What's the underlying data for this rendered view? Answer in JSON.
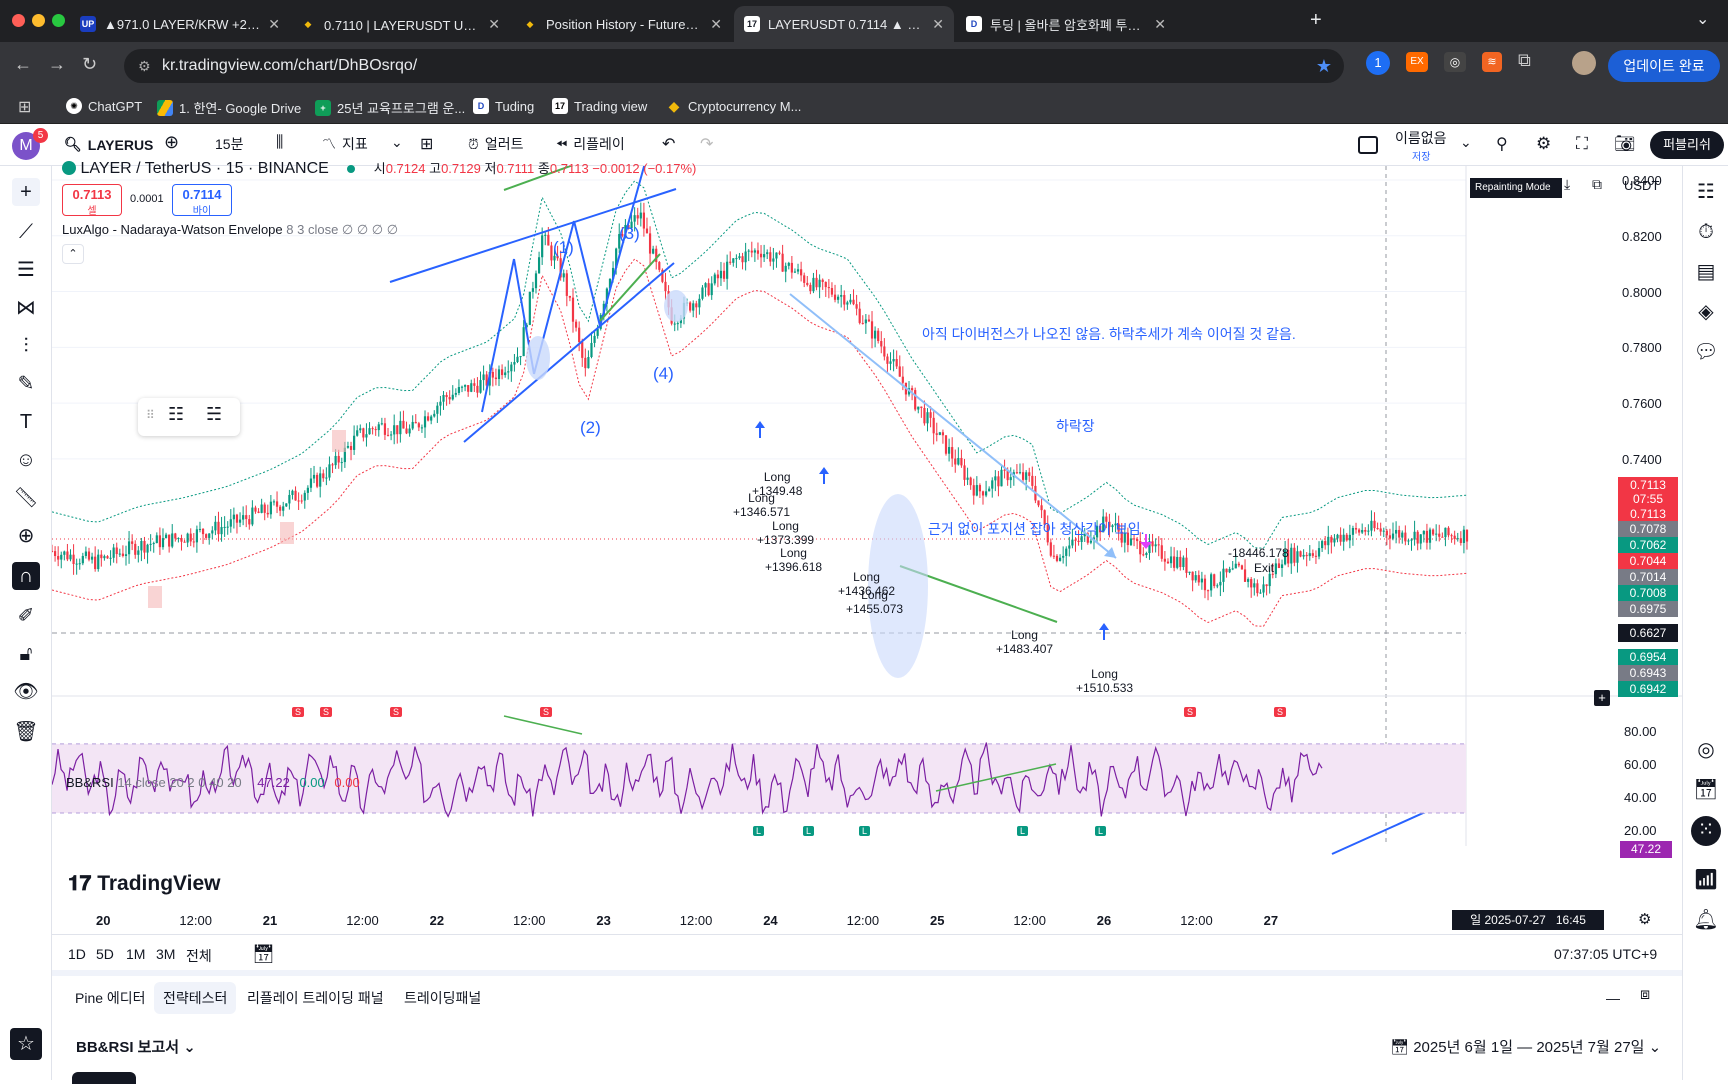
{
  "browser": {
    "tabs": [
      {
        "title": "▲971.0 LAYER/KRW +2.20%",
        "fav": "UP",
        "color": "#1a3dbf"
      },
      {
        "title": "0.7110 | LAYERUSDT USDⓈ-M",
        "fav": "◆",
        "color": "#f0b90b"
      },
      {
        "title": "Position History - Futures Ord",
        "fav": "◆",
        "color": "#f0b90b"
      },
      {
        "title": "LAYERUSDT 0.7114 ▲ +1.92%",
        "fav": "17",
        "color": "#131722"
      },
      {
        "title": "투딩 | 올바른 암호화폐 투자의 모든",
        "fav": "D",
        "color": "#fff"
      }
    ],
    "url": "kr.tradingview.com/chart/DhBOsrqo/",
    "update_label": "업데이트 완료",
    "bookmarks": [
      "ChatGPT",
      "1. 한연- Google Drive",
      "25년 교육프로그램 운...",
      "Tuding",
      "Trading view",
      "Cryptocurrency M..."
    ]
  },
  "toolbar": {
    "avatar": "M",
    "badge": "5",
    "symbol": "LAYERUS",
    "interval": "15분",
    "indicators": "지표",
    "alert": "얼러트",
    "replay": "리플레이",
    "layout_name": "이름없음",
    "layout_sub": "저장",
    "publish": "퍼블리쉬"
  },
  "legend": {
    "title": "LAYER / TetherUS · 15 · BINANCE",
    "o_label": "시",
    "o": "0.7124",
    "h_label": "고",
    "h": "0.7129",
    "l_label": "저",
    "l": "0.7111",
    "c_label": "종",
    "c": "0.7113",
    "chg": "−0.0012 (−0.17%)",
    "sell_price": "0.7113",
    "sell_label": "셀",
    "spread": "0.0001",
    "buy_price": "0.7114",
    "buy_label": "바이",
    "indicator": "LuxAlgo - Nadaraya-Watson Envelope",
    "indicator_params": "8 3 close ∅ ∅ ∅ ∅",
    "repaint": "Repainting Mode",
    "currency": "USDT"
  },
  "annotations": {
    "note1": "아직 다이버전스가 나오진 않음. 하락추세가 계속 이어질 것 같음.",
    "note2": "하락장",
    "note3": "근거 없이 포지션 잡아 청산각이 보임.",
    "wave1": "(1)",
    "wave2": "(2)",
    "wave3": "(3)",
    "wave4": "(4)",
    "exit_pnl": "-18446.178",
    "exit_label": "Exit",
    "trades": [
      {
        "t": "Long",
        "v": "+1349.48"
      },
      {
        "t": "Long",
        "v": "+1346.571"
      },
      {
        "t": "Long",
        "v": "+1373.399"
      },
      {
        "t": "Long",
        "v": "+1396.618"
      },
      {
        "t": "Long",
        "v": "+1436.462"
      },
      {
        "t": "Long",
        "v": "+1455.073"
      },
      {
        "t": "Long",
        "v": "+1483.407"
      },
      {
        "t": "Long",
        "v": "+1510.533"
      }
    ]
  },
  "price_axis": {
    "ticks": [
      "0.8400",
      "0.8200",
      "0.8000",
      "0.7800",
      "0.7600",
      "0.7400"
    ],
    "boxes": [
      {
        "v": "0.7113",
        "c": "#f23645"
      },
      {
        "v": "07:55",
        "c": "#f23645"
      },
      {
        "v": "0.7113",
        "c": "#f23645"
      },
      {
        "v": "0.7078",
        "c": "#787b86"
      },
      {
        "v": "0.7062",
        "c": "#089981"
      },
      {
        "v": "0.7044",
        "c": "#f23645"
      },
      {
        "v": "0.7014",
        "c": "#787b86"
      },
      {
        "v": "0.7008",
        "c": "#089981"
      },
      {
        "v": "0.6975",
        "c": "#787b86"
      },
      {
        "v": "0.6627",
        "c": "#131722"
      },
      {
        "v": "0.6954",
        "c": "#089981"
      },
      {
        "v": "0.6943",
        "c": "#787b86"
      },
      {
        "v": "0.6942",
        "c": "#089981"
      }
    ]
  },
  "rsi": {
    "title": "BB&RSI",
    "params": "14 close 20 2 0 40 20",
    "v1": "47.22",
    "v2": "0.00",
    "v3": "0.00",
    "ticks": [
      "80.00",
      "60.00",
      "40.00",
      "20.00"
    ],
    "current": "47.22",
    "sell_tag": "S",
    "long_tag": "L"
  },
  "time_axis": {
    "ticks": [
      "20",
      "12:00",
      "21",
      "12:00",
      "22",
      "12:00",
      "23",
      "12:00",
      "24",
      "12:00",
      "25",
      "12:00",
      "26",
      "12:00",
      "27"
    ],
    "cursor": "일 2025-07-27   16:45"
  },
  "brand": "TradingView",
  "ranges": [
    "1D",
    "5D",
    "1M",
    "3M",
    "전체"
  ],
  "clock": "07:37:05 UTC+9",
  "panel": {
    "tabs": [
      "Pine 에디터",
      "전략테스터",
      "리플레이 트레이딩 패널",
      "트레이딩패널"
    ],
    "report": "BB&RSI 보고서",
    "date_range": "2025년 6월 1일 — 2025년 7월 27일"
  },
  "chart_data": {
    "type": "candlestick",
    "symbol": "LAYER / TetherUS",
    "interval": "15",
    "ylim": [
      0.655,
      0.845
    ],
    "last_price": 0.7113,
    "path": [
      [
        0,
        0.707
      ],
      [
        4,
        0.703
      ],
      [
        8,
        0.709
      ],
      [
        12,
        0.712
      ],
      [
        16,
        0.716
      ],
      [
        20,
        0.722
      ],
      [
        23,
        0.728
      ],
      [
        26,
        0.738
      ],
      [
        28,
        0.748
      ],
      [
        30,
        0.752
      ],
      [
        33,
        0.75
      ],
      [
        36,
        0.762
      ],
      [
        40,
        0.768
      ],
      [
        43,
        0.778
      ],
      [
        45,
        0.82
      ],
      [
        47,
        0.805
      ],
      [
        49,
        0.771
      ],
      [
        52,
        0.818
      ],
      [
        54,
        0.828
      ],
      [
        57,
        0.79
      ],
      [
        60,
        0.8
      ],
      [
        63,
        0.812
      ],
      [
        65,
        0.815
      ],
      [
        68,
        0.808
      ],
      [
        70,
        0.802
      ],
      [
        73,
        0.798
      ],
      [
        76,
        0.782
      ],
      [
        79,
        0.762
      ],
      [
        82,
        0.745
      ],
      [
        85,
        0.728
      ],
      [
        88,
        0.735
      ],
      [
        90,
        0.732
      ],
      [
        92,
        0.705
      ],
      [
        95,
        0.712
      ],
      [
        97,
        0.718
      ],
      [
        99,
        0.71
      ],
      [
        102,
        0.706
      ],
      [
        104,
        0.702
      ],
      [
        106,
        0.695
      ],
      [
        109,
        0.7
      ],
      [
        111,
        0.692
      ],
      [
        113,
        0.705
      ],
      [
        116,
        0.707
      ],
      [
        118,
        0.712
      ],
      [
        121,
        0.715
      ],
      [
        124,
        0.713
      ],
      [
        127,
        0.712
      ],
      [
        130,
        0.713
      ]
    ],
    "rsi_ylim": [
      10,
      95
    ],
    "rsi_band": [
      30,
      72
    ]
  }
}
